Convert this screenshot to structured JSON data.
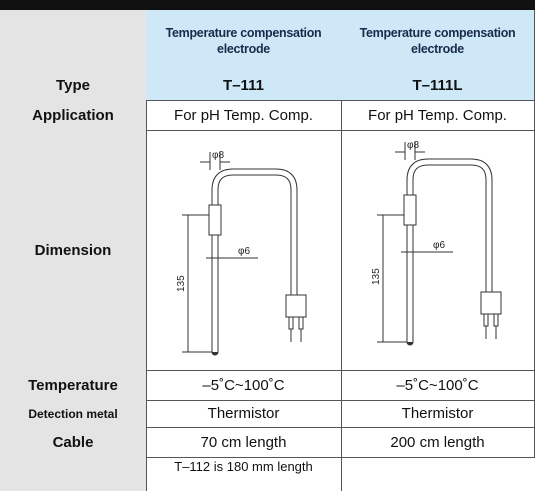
{
  "table": {
    "header": [
      "Temperature compensation electrode",
      "Temperature compensation electrode"
    ],
    "rows": [
      {
        "label": "Type",
        "cells": [
          "T–111",
          "T–111L"
        ]
      },
      {
        "label": "Application",
        "cells": [
          "For pH Temp. Comp.",
          "For pH Temp. Comp."
        ]
      },
      {
        "label": "Dimension"
      },
      {
        "label": "Temperature",
        "cells": [
          "–5˚C~100˚C",
          "–5˚C~100˚C"
        ]
      },
      {
        "label": "Detection metal",
        "cells": [
          "Thermistor",
          "Thermistor"
        ]
      },
      {
        "label": "Cable",
        "cells": [
          "70 cm length",
          "200 cm length"
        ]
      }
    ],
    "drawings": [
      {
        "top_diameter": "φ8",
        "rod_diameter": "φ6",
        "length": "135"
      },
      {
        "top_diameter": "φ8",
        "rod_diameter": "φ6",
        "length": "135"
      }
    ],
    "note": "T–112 is 180 mm length"
  }
}
